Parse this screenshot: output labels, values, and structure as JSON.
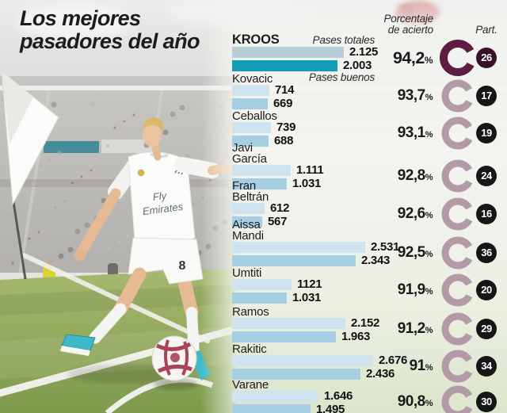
{
  "title": {
    "line1": "Los mejores",
    "line2": "pasadores del año"
  },
  "headers": {
    "accuracy_l1": "Porcentaje",
    "accuracy_l2": "de acierto",
    "participation": "Part."
  },
  "legend": {
    "total": "Pases totales",
    "good": "Pases buenos"
  },
  "percent_sign": "%",
  "photo": {
    "sponsor_line1": "Fly",
    "sponsor_line2": "Emirates",
    "shirt_number": "8"
  },
  "colors": {
    "bar_total": "#cfe3ee",
    "bar_good": "#a7cfe3",
    "bar_total_highlight": "#b7ced7",
    "bar_good_highlight": "#129fb5",
    "donut": "#b29aa6",
    "donut_highlight": "#5e1d40",
    "badge_bg": "#161616",
    "badge_bg_highlight": "#38112a",
    "badge_text": "#ffffff"
  },
  "chart_data": {
    "type": "bar",
    "orientation": "horizontal",
    "title": "Los mejores pasadores del año",
    "series": [
      "Pases totales",
      "Pases buenos"
    ],
    "x_max": 2676,
    "legend_position": "inline-top",
    "players": [
      {
        "name_lines": [
          "KROOS"
        ],
        "highlight": true,
        "total": 2125,
        "total_label": "2.125",
        "good": 2003,
        "good_label": "2.003",
        "accuracy": 94.2,
        "accuracy_label": "94,2",
        "participations": "26"
      },
      {
        "name_lines": [
          "Kovacic"
        ],
        "highlight": false,
        "total": 714,
        "total_label": "714",
        "good": 669,
        "good_label": "669",
        "accuracy": 93.7,
        "accuracy_label": "93,7",
        "participations": "17"
      },
      {
        "name_lines": [
          "Ceballos"
        ],
        "highlight": false,
        "total": 739,
        "total_label": "739",
        "good": 688,
        "good_label": "688",
        "accuracy": 93.1,
        "accuracy_label": "93,1",
        "participations": "19"
      },
      {
        "name_lines": [
          "Javi",
          "García"
        ],
        "highlight": false,
        "total": 1111,
        "total_label": "1.111",
        "good": 1031,
        "good_label": "1.031",
        "accuracy": 92.8,
        "accuracy_label": "92,8",
        "participations": "24"
      },
      {
        "name_lines": [
          "Fran",
          "Beltrán"
        ],
        "highlight": false,
        "total": 612,
        "total_label": "612",
        "good": 567,
        "good_label": "567",
        "accuracy": 92.6,
        "accuracy_label": "92,6",
        "participations": "16"
      },
      {
        "name_lines": [
          "Aissa",
          "Mandi"
        ],
        "highlight": false,
        "total": 2531,
        "total_label": "2.531",
        "good": 2343,
        "good_label": "2.343",
        "accuracy": 92.5,
        "accuracy_label": "92,5",
        "participations": "36"
      },
      {
        "name_lines": [
          "Umtiti"
        ],
        "highlight": false,
        "total": 1121,
        "total_label": "1121",
        "good": 1031,
        "good_label": "1.031",
        "accuracy": 91.9,
        "accuracy_label": "91,9",
        "participations": "20"
      },
      {
        "name_lines": [
          "Ramos"
        ],
        "highlight": false,
        "total": 2152,
        "total_label": "2.152",
        "good": 1963,
        "good_label": "1.963",
        "accuracy": 91.2,
        "accuracy_label": "91,2",
        "participations": "29"
      },
      {
        "name_lines": [
          "Rakitic"
        ],
        "highlight": false,
        "total": 2676,
        "total_label": "2.676",
        "good": 2436,
        "good_label": "2.436",
        "accuracy": 91.0,
        "accuracy_label": "91",
        "participations": "34"
      },
      {
        "name_lines": [
          "Varane"
        ],
        "highlight": false,
        "total": 1646,
        "total_label": "1.646",
        "good": 1495,
        "good_label": "1.495",
        "accuracy": 90.8,
        "accuracy_label": "90,8",
        "participations": "30"
      }
    ]
  }
}
